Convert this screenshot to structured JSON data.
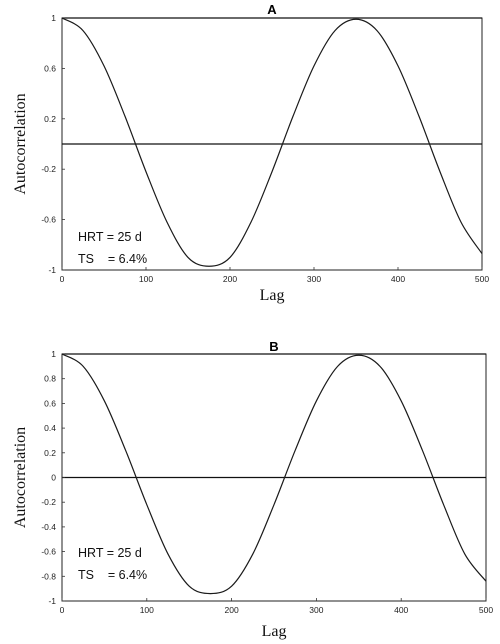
{
  "chart_data": [
    {
      "type": "line",
      "title": "A",
      "xlabel": "Lag",
      "ylabel": "Autocorrelation",
      "xlim": [
        0,
        500
      ],
      "ylim": [
        -1,
        1
      ],
      "x_ticks": [
        "0",
        "100",
        "200",
        "300",
        "400",
        "500"
      ],
      "y_ticks": [
        "1",
        "0.6",
        "0.2",
        "-0.2",
        "-0.6",
        "-1"
      ],
      "reference_lines": [
        0,
        1
      ],
      "series": [
        {
          "x": [
            0,
            25,
            50,
            75,
            100,
            125,
            150,
            175,
            200,
            225,
            250,
            275,
            300,
            325,
            350,
            375,
            400,
            425,
            450,
            475,
            500
          ],
          "values": [
            1.0,
            0.9,
            0.62,
            0.22,
            -0.22,
            -0.62,
            -0.9,
            -0.97,
            -0.9,
            -0.62,
            -0.22,
            0.22,
            0.62,
            0.9,
            0.99,
            0.9,
            0.62,
            0.22,
            -0.22,
            -0.62,
            -0.87
          ]
        }
      ],
      "annotations": [
        "HRT = 25 d",
        "TS    = 6.4%"
      ]
    },
    {
      "type": "line",
      "title": "B",
      "xlabel": "Lag",
      "ylabel": "Autocorrelation",
      "xlim": [
        0,
        500
      ],
      "ylim": [
        -1,
        1
      ],
      "x_ticks": [
        "0",
        "100",
        "200",
        "300",
        "400",
        "500"
      ],
      "y_ticks": [
        "1",
        "0.8",
        "0.6",
        "0.4",
        "0.2",
        "0",
        "-0.2",
        "-0.4",
        "-0.6",
        "-0.8",
        "-1"
      ],
      "reference_lines": [
        0,
        1
      ],
      "series": [
        {
          "x": [
            0,
            25,
            50,
            75,
            100,
            125,
            150,
            175,
            200,
            225,
            250,
            275,
            300,
            325,
            350,
            375,
            400,
            425,
            450,
            475,
            500
          ],
          "values": [
            1.0,
            0.9,
            0.62,
            0.22,
            -0.22,
            -0.62,
            -0.88,
            -0.94,
            -0.88,
            -0.62,
            -0.22,
            0.22,
            0.62,
            0.9,
            0.99,
            0.9,
            0.62,
            0.22,
            -0.22,
            -0.62,
            -0.84
          ]
        }
      ],
      "annotations": [
        "HRT = 25 d",
        "TS    = 6.4%"
      ]
    }
  ]
}
